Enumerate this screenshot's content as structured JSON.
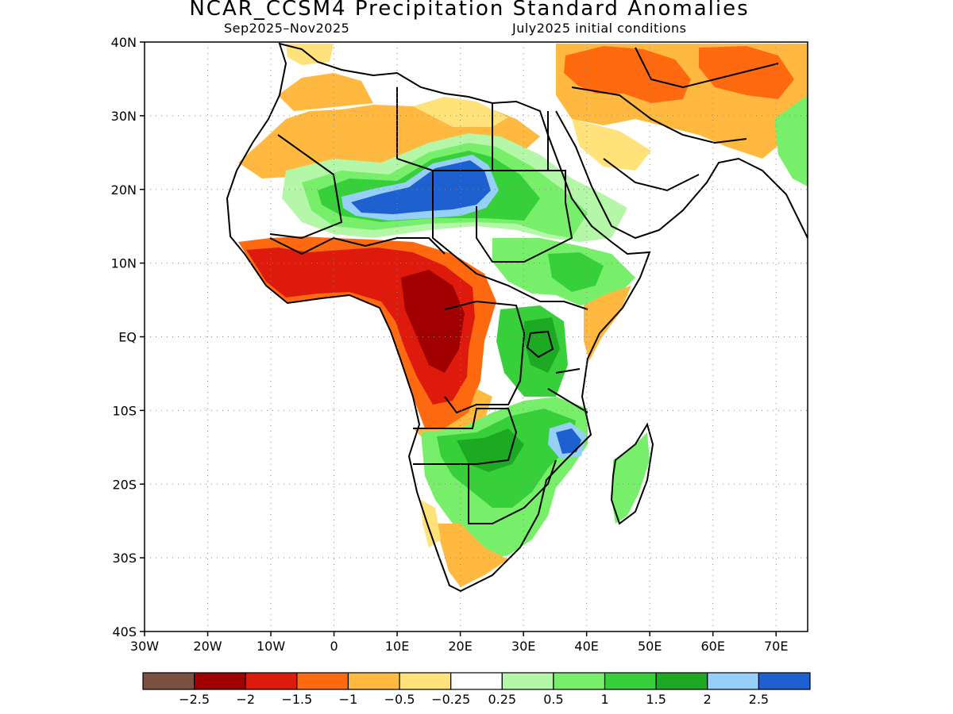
{
  "title": "NCAR_CCSM4 Precipitation Standard Anomalies",
  "subtitle_left": "Sep2025–Nov2025",
  "subtitle_right": "July2025 initial conditions",
  "map": {
    "lon_range": [
      -30,
      75
    ],
    "lat_range": [
      -40,
      40
    ],
    "lat_ticks": [
      {
        "value": 40,
        "label": "40N"
      },
      {
        "value": 30,
        "label": "30N"
      },
      {
        "value": 20,
        "label": "20N"
      },
      {
        "value": 10,
        "label": "10N"
      },
      {
        "value": 0,
        "label": "EQ"
      },
      {
        "value": -10,
        "label": "10S"
      },
      {
        "value": -20,
        "label": "20S"
      },
      {
        "value": -30,
        "label": "30S"
      },
      {
        "value": -40,
        "label": "40S"
      }
    ],
    "lon_ticks": [
      {
        "value": -30,
        "label": "30W"
      },
      {
        "value": -20,
        "label": "20W"
      },
      {
        "value": -10,
        "label": "10W"
      },
      {
        "value": 0,
        "label": "0"
      },
      {
        "value": 10,
        "label": "10E"
      },
      {
        "value": 20,
        "label": "20E"
      },
      {
        "value": 30,
        "label": "30E"
      },
      {
        "value": 40,
        "label": "40E"
      },
      {
        "value": 50,
        "label": "50E"
      },
      {
        "value": 60,
        "label": "60E"
      },
      {
        "value": 70,
        "label": "70E"
      }
    ],
    "grid": true
  },
  "colorbar": {
    "colors": [
      "#7a5040",
      "#a00000",
      "#dd1a0c",
      "#ff6a10",
      "#ffb840",
      "#ffe27a",
      "#ffffff",
      "#b4f7a8",
      "#78ef6a",
      "#37d03a",
      "#1ea924",
      "#96cff8",
      "#1e60d0"
    ],
    "labels": [
      "−2.5",
      "−2",
      "−1.5",
      "−1",
      "−0.5",
      "−0.25",
      "0.25",
      "0.5",
      "1",
      "1.5",
      "2",
      "2.5"
    ]
  }
}
